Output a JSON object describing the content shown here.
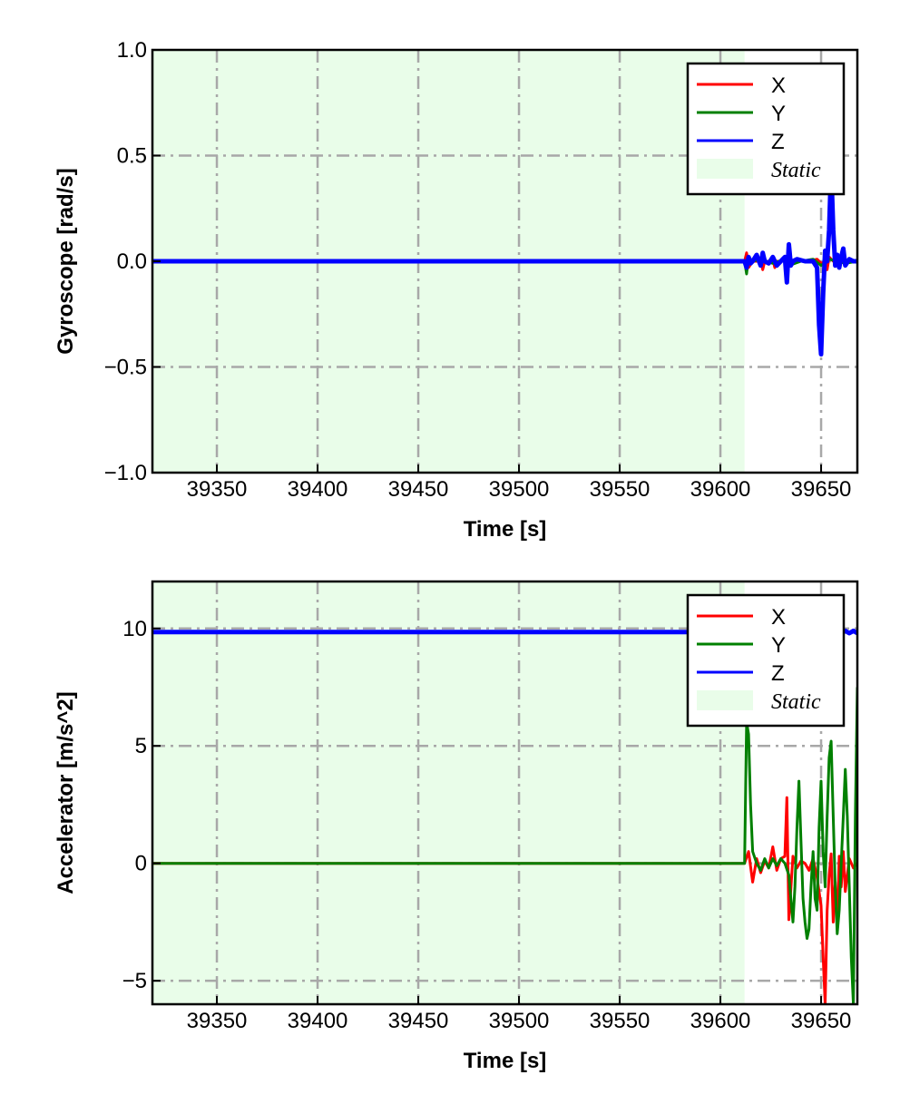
{
  "chart_data": [
    {
      "type": "line",
      "panel": "top",
      "title": "",
      "xlabel": "Time [s]",
      "ylabel": "Gyroscope [rad/s]",
      "xlim": [
        39318,
        39668
      ],
      "ylim": [
        -1.0,
        1.0
      ],
      "xticks": [
        39350,
        39400,
        39450,
        39500,
        39550,
        39600,
        39650
      ],
      "xtick_labels": [
        "39350",
        "39400",
        "39450",
        "39500",
        "39550",
        "39600",
        "39650"
      ],
      "yticks": [
        -1.0,
        -0.5,
        0.0,
        0.5,
        1.0
      ],
      "ytick_labels": [
        "−1.0",
        "−0.5",
        "0.0",
        "0.5",
        "1.0"
      ],
      "grid": true,
      "legend_position": "top-right",
      "static_region": {
        "label": "Static",
        "x": [
          39318,
          39612
        ],
        "color": "#e9fde9"
      },
      "series": [
        {
          "name": "X",
          "color": "#ff0000",
          "x": [
            39318,
            39612,
            39613,
            39614,
            39616,
            39618,
            39620,
            39621,
            39622,
            39624,
            39626,
            39627,
            39628,
            39630,
            39632,
            39633,
            39634,
            39636,
            39640,
            39644,
            39648,
            39650,
            39652,
            39653,
            39654,
            39656,
            39660,
            39664,
            39668
          ],
          "y": [
            0.0,
            0.0,
            0.04,
            -0.03,
            0.0,
            0.0,
            0.01,
            -0.04,
            0.0,
            0.0,
            0.01,
            -0.03,
            0.0,
            0.0,
            0.02,
            -0.02,
            0.0,
            0.0,
            0.0,
            0.0,
            0.01,
            -0.01,
            0.0,
            -0.04,
            0.02,
            0.0,
            0.01,
            0.0,
            0.0
          ]
        },
        {
          "name": "Y",
          "color": "#008000",
          "x": [
            39318,
            39612,
            39613,
            39614,
            39616,
            39620,
            39626,
            39632,
            39634,
            39640,
            39646,
            39650,
            39654,
            39658,
            39662,
            39668
          ],
          "y": [
            0.0,
            0.0,
            -0.06,
            0.02,
            0.0,
            0.01,
            -0.01,
            0.01,
            -0.02,
            0.0,
            0.01,
            -0.02,
            0.01,
            0.0,
            -0.01,
            0.0
          ]
        },
        {
          "name": "Z",
          "color": "#0000ff",
          "x": [
            39318,
            39612,
            39613,
            39614,
            39615,
            39616,
            39618,
            39620,
            39621,
            39622,
            39624,
            39626,
            39628,
            39630,
            39632,
            39633,
            39634,
            39635,
            39636,
            39638,
            39642,
            39646,
            39648,
            39649,
            39650,
            39651,
            39652,
            39653,
            39654,
            39655,
            39656,
            39657,
            39658,
            39659,
            39660,
            39661,
            39662,
            39664,
            39666,
            39668
          ],
          "y": [
            0.0,
            0.0,
            -0.03,
            0.02,
            -0.01,
            0.0,
            0.03,
            -0.02,
            0.04,
            0.0,
            -0.01,
            0.02,
            -0.02,
            0.0,
            0.02,
            -0.1,
            0.08,
            -0.02,
            0.0,
            0.01,
            0.0,
            0.0,
            -0.03,
            -0.3,
            -0.44,
            -0.15,
            0.05,
            0.0,
            0.15,
            0.45,
            0.15,
            -0.02,
            0.03,
            -0.03,
            0.02,
            0.06,
            -0.02,
            0.01,
            0.0,
            0.0
          ]
        }
      ]
    },
    {
      "type": "line",
      "panel": "bottom",
      "title": "",
      "xlabel": "Time [s]",
      "ylabel": "Accelerator [m/s^2]",
      "xlim": [
        39318,
        39668
      ],
      "ylim": [
        -6.0,
        12.0
      ],
      "xticks": [
        39350,
        39400,
        39450,
        39500,
        39550,
        39600,
        39650
      ],
      "xtick_labels": [
        "39350",
        "39400",
        "39450",
        "39500",
        "39550",
        "39600",
        "39650"
      ],
      "yticks": [
        -5,
        0,
        5,
        10
      ],
      "ytick_labels": [
        "−5",
        "0",
        "5",
        "10"
      ],
      "grid": true,
      "legend_position": "top-right",
      "static_region": {
        "label": "Static",
        "x": [
          39318,
          39612
        ],
        "color": "#e9fde9"
      },
      "series": [
        {
          "name": "X",
          "color": "#ff0000",
          "x": [
            39318,
            39612,
            39614,
            39616,
            39618,
            39620,
            39622,
            39624,
            39626,
            39628,
            39630,
            39632,
            39633,
            39634,
            39636,
            39638,
            39640,
            39642,
            39644,
            39646,
            39648,
            39650,
            39651,
            39652,
            39653,
            39654,
            39655,
            39656,
            39657,
            39658,
            39659,
            39660,
            39661,
            39662,
            39664,
            39666,
            39668
          ],
          "y": [
            0.0,
            0.0,
            0.5,
            -0.8,
            0.2,
            -0.4,
            0.1,
            -0.2,
            0.7,
            -0.3,
            0.2,
            0.3,
            2.8,
            -2.4,
            0.3,
            -0.2,
            0.1,
            0.0,
            -0.3,
            0.2,
            -0.6,
            -1.8,
            -4.0,
            -6.0,
            -2.0,
            -0.5,
            0.4,
            -2.5,
            -0.8,
            -2.8,
            0.3,
            -1.0,
            0.5,
            -1.2,
            0.2,
            -0.2,
            0.0
          ]
        },
        {
          "name": "Y",
          "color": "#008000",
          "x": [
            39318,
            39612,
            39613,
            39614,
            39615,
            39616,
            39618,
            39620,
            39622,
            39624,
            39626,
            39628,
            39630,
            39632,
            39634,
            39635,
            39636,
            39637,
            39638,
            39639,
            39640,
            39641,
            39642,
            39643,
            39644,
            39645,
            39646,
            39647,
            39648,
            39649,
            39650,
            39651,
            39652,
            39653,
            39654,
            39655,
            39656,
            39657,
            39658,
            39659,
            39660,
            39661,
            39662,
            39663,
            39664,
            39665,
            39666,
            39667,
            39668
          ],
          "y": [
            0.0,
            0.0,
            6.0,
            5.5,
            2.5,
            0.5,
            0.0,
            -0.3,
            0.2,
            -0.2,
            0.2,
            -0.1,
            0.2,
            0.0,
            -0.5,
            -1.5,
            -2.5,
            -1.0,
            1.5,
            3.5,
            1.0,
            -1.5,
            -2.5,
            -3.2,
            -2.8,
            -1.0,
            0.5,
            -1.5,
            -2.0,
            1.5,
            3.5,
            0.5,
            -1.0,
            2.0,
            4.5,
            5.2,
            2.0,
            -1.0,
            -3.0,
            -2.0,
            0.0,
            2.0,
            4.0,
            2.0,
            -1.0,
            -4.0,
            -6.0,
            2.0,
            7.5
          ]
        },
        {
          "name": "Z",
          "color": "#0000ff",
          "x": [
            39318,
            39612,
            39614,
            39616,
            39618,
            39620,
            39622,
            39624,
            39626,
            39628,
            39630,
            39632,
            39634,
            39636,
            39638,
            39640,
            39642,
            39644,
            39646,
            39648,
            39650,
            39652,
            39654,
            39656,
            39658,
            39660,
            39662,
            39664,
            39666,
            39668
          ],
          "y": [
            9.85,
            9.85,
            10.0,
            9.6,
            10.1,
            9.7,
            9.9,
            9.8,
            10.0,
            9.7,
            9.9,
            9.8,
            10.1,
            9.7,
            9.9,
            9.8,
            9.9,
            9.8,
            9.9,
            9.8,
            9.9,
            9.7,
            9.9,
            9.8,
            9.9,
            9.8,
            9.9,
            9.8,
            9.9,
            9.8
          ]
        }
      ]
    }
  ]
}
